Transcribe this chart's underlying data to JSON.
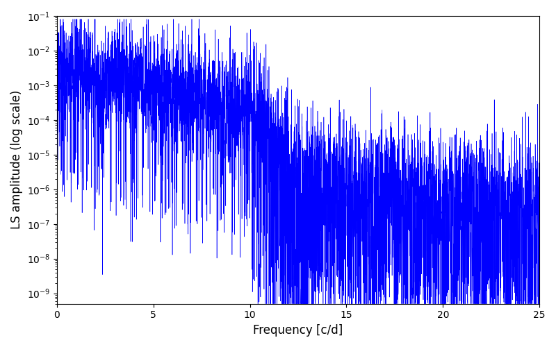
{
  "title": "",
  "xlabel": "Frequency [c/d]",
  "ylabel": "LS amplitude (log scale)",
  "line_color": "blue",
  "xlim": [
    0,
    25
  ],
  "ylim": [
    5e-10,
    0.1
  ],
  "background_color": "#ffffff",
  "figsize": [
    8.0,
    5.0
  ],
  "dpi": 100,
  "seed": 12345,
  "n_points": 5000,
  "freq_max": 25.0
}
